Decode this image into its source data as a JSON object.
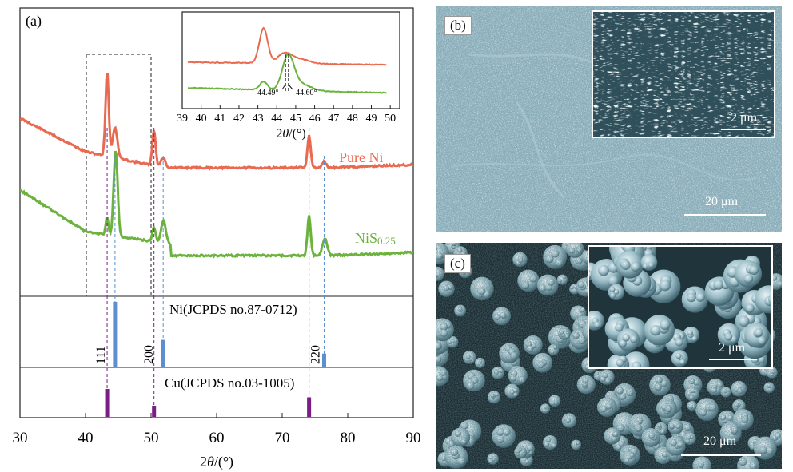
{
  "panel_a": {
    "label": "(a)",
    "main_x_ticks": [
      "30",
      "40",
      "50",
      "60",
      "70",
      "80",
      "90"
    ],
    "main_xlabel": "2θ/(°)",
    "series": [
      {
        "name": "Pure Ni",
        "color": "#e86a50"
      },
      {
        "name": "NiS0.25",
        "color": "#6cb33e"
      }
    ],
    "inset": {
      "x_ticks": [
        "39",
        "40",
        "41",
        "42",
        "43",
        "44",
        "45",
        "46",
        "47",
        "48",
        "49",
        "50"
      ],
      "xlabel": "2θ/(°)",
      "peak_labels": [
        "44.49°",
        "44.60°"
      ]
    },
    "reference_ni": {
      "label": "Ni(JCPDS no.87-0712)",
      "color": "#5b8fd0",
      "peaks": [
        {
          "two_theta": 44.5,
          "intensity": 100,
          "hkl": "111"
        },
        {
          "two_theta": 51.85,
          "intensity": 42,
          "hkl": "200"
        },
        {
          "two_theta": 76.4,
          "intensity": 21,
          "hkl": "220"
        }
      ]
    },
    "reference_cu": {
      "label": "Cu(JCPDS no.03-1005)",
      "color": "#7b1d86",
      "peaks": [
        {
          "two_theta": 43.3,
          "intensity": 100
        },
        {
          "two_theta": 50.45,
          "intensity": 40
        },
        {
          "two_theta": 74.1,
          "intensity": 70
        }
      ]
    }
  },
  "panel_b": {
    "label": "(b)",
    "scale_main": "20 μm",
    "scale_inset": "2 μm"
  },
  "panel_c": {
    "label": "(c)",
    "scale_main": "20 μm",
    "scale_inset": "2 μm"
  }
}
